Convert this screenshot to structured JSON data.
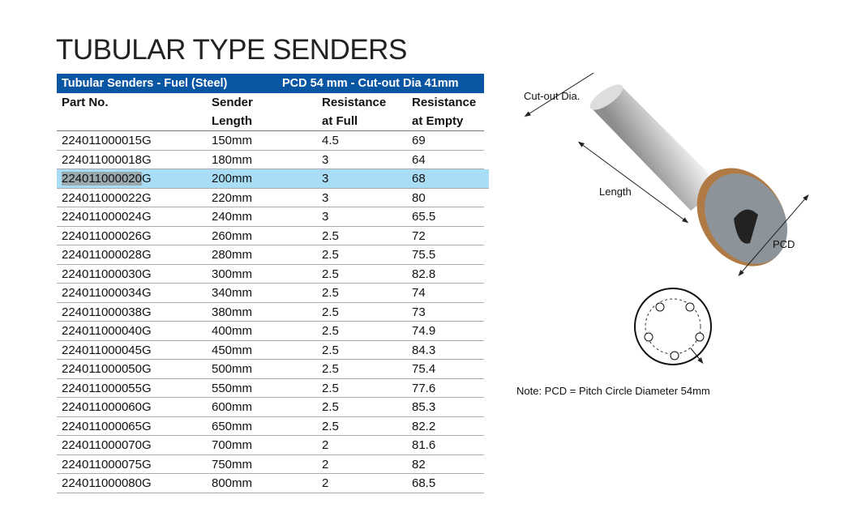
{
  "title": "TUBULAR TYPE SENDERS",
  "table": {
    "bar_left": "Tubular Senders - Fuel (Steel)",
    "bar_right": "PCD 54 mm - Cut-out Dia 41mm",
    "headers": [
      [
        "Part No.",
        ""
      ],
      [
        "Sender",
        "Length"
      ],
      [
        "Resistance",
        "at Full"
      ],
      [
        "Resistance",
        "at Empty"
      ]
    ],
    "selected_row": 2,
    "selected_text": "224011000020",
    "rows": [
      [
        "224011000015G",
        "150mm",
        "4.5",
        "69"
      ],
      [
        "224011000018G",
        "180mm",
        "3",
        "64"
      ],
      [
        "224011000020G",
        "200mm",
        "3",
        "68"
      ],
      [
        "224011000022G",
        "220mm",
        "3",
        "80"
      ],
      [
        "224011000024G",
        "240mm",
        "3",
        "65.5"
      ],
      [
        "224011000026G",
        "260mm",
        "2.5",
        "72"
      ],
      [
        "224011000028G",
        "280mm",
        "2.5",
        "75.5"
      ],
      [
        "224011000030G",
        "300mm",
        "2.5",
        "82.8"
      ],
      [
        "224011000034G",
        "340mm",
        "2.5",
        "74"
      ],
      [
        "224011000038G",
        "380mm",
        "2.5",
        "73"
      ],
      [
        "224011000040G",
        "400mm",
        "2.5",
        "74.9"
      ],
      [
        "224011000045G",
        "450mm",
        "2.5",
        "84.3"
      ],
      [
        "224011000050G",
        "500mm",
        "2.5",
        "75.4"
      ],
      [
        "224011000055G",
        "550mm",
        "2.5",
        "77.6"
      ],
      [
        "224011000060G",
        "600mm",
        "2.5",
        "85.3"
      ],
      [
        "224011000065G",
        "650mm",
        "2.5",
        "82.2"
      ],
      [
        "224011000070G",
        "700mm",
        "2",
        "81.6"
      ],
      [
        "224011000075G",
        "750mm",
        "2",
        "82"
      ],
      [
        "224011000080G",
        "800mm",
        "2",
        "68.5"
      ]
    ]
  },
  "diagram": {
    "cutout": "Cut-out Dia.",
    "length": "Length",
    "pcd": "PCD",
    "note": "Note: PCD = Pitch Circle Diameter  54mm"
  },
  "colors": {
    "header_bar": "#0a56a2",
    "highlight": "#a9ddf6"
  }
}
